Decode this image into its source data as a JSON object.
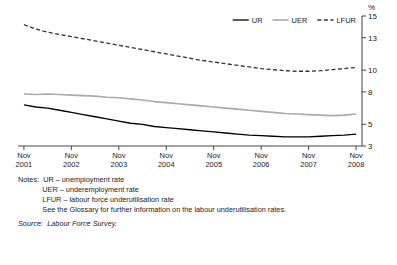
{
  "chart_data": {
    "type": "line",
    "y_label": "%",
    "categories": [
      "Nov\n2001",
      null,
      null,
      null,
      "Nov\n2002",
      null,
      null,
      null,
      "Nov\n2003",
      null,
      null,
      null,
      "Nov\n2004",
      null,
      null,
      null,
      "Nov\n2005",
      null,
      null,
      null,
      "Nov\n2006",
      null,
      null,
      null,
      "Nov\n2007",
      null,
      null,
      null,
      "Nov\n2008"
    ],
    "series": [
      {
        "name": "UR",
        "color": "#000000",
        "line_style": "solid",
        "values": [
          6.8,
          6.6,
          6.5,
          6.3,
          6.1,
          5.9,
          5.7,
          5.5,
          5.3,
          5.1,
          5.0,
          4.8,
          4.7,
          4.6,
          4.5,
          4.4,
          4.3,
          4.2,
          4.1,
          4.0,
          3.95,
          3.9,
          3.85,
          3.85,
          3.85,
          3.9,
          3.95,
          4.0,
          4.1
        ]
      },
      {
        "name": "UER",
        "color": "#aaaaaa",
        "line_style": "solid",
        "values": [
          7.8,
          7.75,
          7.8,
          7.75,
          7.7,
          7.65,
          7.6,
          7.5,
          7.45,
          7.35,
          7.25,
          7.1,
          7.0,
          6.9,
          6.8,
          6.7,
          6.6,
          6.5,
          6.4,
          6.3,
          6.2,
          6.1,
          6.0,
          5.95,
          5.9,
          5.85,
          5.8,
          5.85,
          5.95
        ]
      },
      {
        "name": "LFUR",
        "color": "#333333",
        "line_style": "dashed",
        "values": [
          14.2,
          13.8,
          13.5,
          13.3,
          13.1,
          12.9,
          12.7,
          12.5,
          12.3,
          12.1,
          11.9,
          11.7,
          11.5,
          11.3,
          11.1,
          10.9,
          10.75,
          10.6,
          10.45,
          10.3,
          10.15,
          10.05,
          9.95,
          9.9,
          9.9,
          9.95,
          10.05,
          10.15,
          10.25
        ]
      }
    ],
    "ylim": [
      3,
      15
    ],
    "yticks": [
      3,
      5,
      8,
      10,
      13,
      15
    ],
    "grid": false,
    "legend": "upper right",
    "annotations": [
      "Notes:  UR – unemployment rate",
      "            UER – underemployment rate",
      "            LFUR – labour force underutilisation rate",
      "            See the Glossary for further information on the labour underutilisation rates.",
      "Source:  Labour Force Survey."
    ]
  }
}
